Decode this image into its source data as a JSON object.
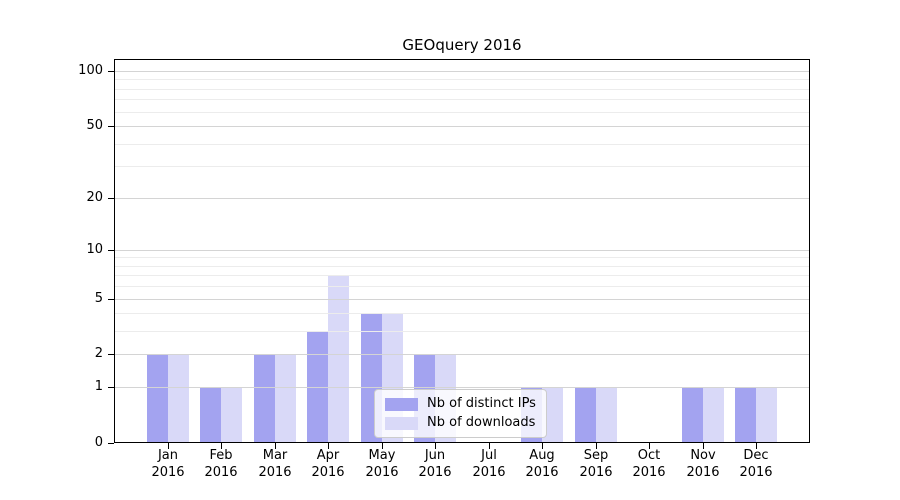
{
  "chart_data": {
    "type": "bar",
    "title": "GEOquery 2016",
    "categories": [
      "Jan",
      "Feb",
      "Mar",
      "Apr",
      "May",
      "Jun",
      "Jul",
      "Aug",
      "Sep",
      "Oct",
      "Nov",
      "Dec"
    ],
    "x_tick_year": "2016",
    "series": [
      {
        "name": "Nb of distinct IPs",
        "color": "#a3a3f0",
        "values": [
          2,
          1,
          2,
          3,
          4,
          2,
          0,
          1,
          1,
          0,
          1,
          1
        ]
      },
      {
        "name": "Nb of downloads",
        "color": "#d9d9f8",
        "values": [
          2,
          1,
          2,
          7,
          4,
          2,
          0,
          1,
          1,
          0,
          1,
          1
        ]
      }
    ],
    "y_axis": {
      "scale": "log1p",
      "tick_values": [
        0,
        1,
        2,
        5,
        10,
        20,
        50,
        100
      ],
      "minor_gridlines": [
        3,
        4,
        6,
        7,
        8,
        9,
        30,
        40,
        60,
        70,
        80,
        90
      ],
      "range": [
        0,
        100
      ]
    },
    "legend": {
      "position": "lower center"
    },
    "grid": true,
    "colors": {
      "major_grid": "#d4d4d4",
      "minor_grid": "#ececec",
      "axis": "#000000",
      "background": "#ffffff"
    }
  }
}
